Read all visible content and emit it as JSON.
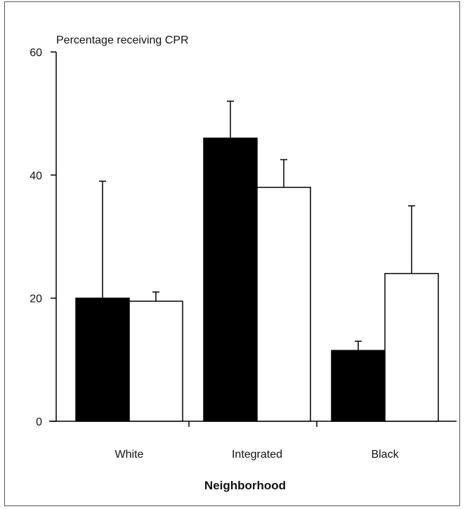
{
  "chart_data": {
    "type": "bar",
    "ylabel": "Percentage receiving CPR",
    "xlabel": "Neighborhood",
    "categories": [
      "White",
      "Integrated",
      "Black"
    ],
    "ylim": [
      0,
      60
    ],
    "yticks": [
      0,
      20,
      40,
      60
    ],
    "grid": false,
    "legend": "none",
    "series": [
      {
        "fill": "#000000",
        "values": [
          20,
          46,
          11.5
        ],
        "error_upper": [
          39,
          52,
          13
        ]
      },
      {
        "fill": "#ffffff",
        "values": [
          19.5,
          38,
          24
        ],
        "error_upper": [
          21,
          42.5,
          35
        ]
      }
    ],
    "colors": {
      "bar_dark": "#000000",
      "bar_light": "#ffffff",
      "stroke": "#000000"
    }
  }
}
